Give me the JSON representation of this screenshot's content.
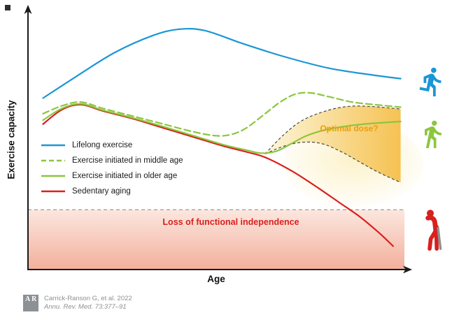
{
  "axes": {
    "y_label": "Exercise capacity",
    "x_label": "Age"
  },
  "legend": [
    {
      "label": "Lifelong exercise",
      "color": "#1b96d5",
      "style": "solid"
    },
    {
      "label": "Exercise initiated in middle age",
      "color": "#8cc63e",
      "style": "dashed"
    },
    {
      "label": "Exercise initiated in older age",
      "color": "#8cc63e",
      "style": "solid"
    },
    {
      "label": "Sedentary aging",
      "color": "#d8201f",
      "style": "solid"
    }
  ],
  "icons": {
    "runner": "running person",
    "walker": "walking person",
    "elderly": "elderly person with cane"
  },
  "citation": {
    "line1": "Carrick-Ranson G, et al. 2022",
    "line2": "Annu. Rev. Med. 73:377–91",
    "logo_top": "A",
    "logo_bottom": "R"
  },
  "colors": {
    "blue": "#1b96d5",
    "green": "#8cc63e",
    "red": "#d8201f",
    "axis": "#1a1a1a",
    "boundary_dash": "#3c3c3c",
    "loss_line": "#9b9b9b",
    "citation_text": "#8f8f8f",
    "logo_bg": "#8d9194",
    "cane": "#8f8f8f"
  },
  "chart_data": {
    "type": "line",
    "title": "",
    "xlabel": "Age",
    "ylabel": "Exercise capacity",
    "grid": false,
    "axis_numeric": false,
    "xlim": [
      0,
      100
    ],
    "ylim": [
      0,
      100
    ],
    "legend_position": "inside-left",
    "series": [
      {
        "name": "Lifelong exercise",
        "color": "#1b96d5",
        "style": "solid",
        "points": [
          [
            4,
            66
          ],
          [
            13,
            74.5
          ],
          [
            23,
            83.5
          ],
          [
            33,
            90
          ],
          [
            40,
            92.5
          ],
          [
            47,
            92
          ],
          [
            57,
            87
          ],
          [
            68,
            82
          ],
          [
            80,
            77.5
          ],
          [
            91,
            75
          ],
          [
            99,
            73.5
          ]
        ]
      },
      {
        "name": "Exercise initiated in middle age",
        "color": "#8cc63e",
        "style": "dashed",
        "points": [
          [
            4,
            60
          ],
          [
            9,
            63
          ],
          [
            14,
            64.5
          ],
          [
            20,
            62
          ],
          [
            28,
            59
          ],
          [
            36,
            56
          ],
          [
            44,
            53
          ],
          [
            50,
            51.5
          ],
          [
            54,
            52
          ],
          [
            58,
            54.5
          ],
          [
            63,
            60
          ],
          [
            67,
            64.5
          ],
          [
            71,
            67.5
          ],
          [
            75,
            68
          ],
          [
            80,
            66.5
          ],
          [
            86,
            64.5
          ],
          [
            92,
            63.5
          ],
          [
            99,
            62.5
          ]
        ]
      },
      {
        "name": "Exercise initiated in older age",
        "color": "#8cc63e",
        "style": "solid",
        "points": [
          [
            4,
            57.5
          ],
          [
            9,
            62
          ],
          [
            14,
            63.8
          ],
          [
            20,
            61.3
          ],
          [
            28,
            58.3
          ],
          [
            36,
            55
          ],
          [
            44,
            51.5
          ],
          [
            52,
            48
          ],
          [
            58,
            46
          ],
          [
            62,
            44.8
          ],
          [
            66,
            45.6
          ],
          [
            70,
            48.5
          ],
          [
            74,
            51.5
          ],
          [
            79,
            53.8
          ],
          [
            85,
            55.3
          ],
          [
            91,
            56.2
          ],
          [
            99,
            57
          ]
        ]
      },
      {
        "name": "Sedentary aging",
        "color": "#d8201f",
        "style": "solid",
        "points": [
          [
            4,
            56
          ],
          [
            9,
            61.5
          ],
          [
            14,
            63.5
          ],
          [
            20,
            61
          ],
          [
            28,
            58
          ],
          [
            36,
            54.5
          ],
          [
            44,
            51
          ],
          [
            52,
            47.5
          ],
          [
            58,
            45.3
          ],
          [
            63,
            43.2
          ],
          [
            70,
            38
          ],
          [
            77,
            31.5
          ],
          [
            83,
            25.5
          ],
          [
            88,
            20.5
          ],
          [
            93,
            14.5
          ],
          [
            97,
            9
          ]
        ]
      }
    ],
    "optimal_dose_band": {
      "label": "Optimal dose?",
      "label_color": "#ee9d0c",
      "fill_from": "#fcf6d8",
      "fill_to": "#f5bf4a",
      "upper": [
        [
          63,
          44.5
        ],
        [
          68,
          52
        ],
        [
          73,
          57.5
        ],
        [
          79,
          61
        ],
        [
          85,
          62.8
        ],
        [
          91,
          62.8
        ],
        [
          96,
          62.2
        ],
        [
          99,
          61.8
        ]
      ],
      "lower": [
        [
          63,
          44.5
        ],
        [
          68,
          47.5
        ],
        [
          73,
          49
        ],
        [
          78,
          48.5
        ],
        [
          83,
          45.5
        ],
        [
          88,
          41.5
        ],
        [
          93,
          37.5
        ],
        [
          99,
          33.5
        ]
      ]
    },
    "loss_zone": {
      "label": "Loss of functional independence",
      "label_color": "#d8201f",
      "y_top": 23,
      "fill_from": "#fbe7df",
      "fill_to": "#f3b09c"
    }
  }
}
